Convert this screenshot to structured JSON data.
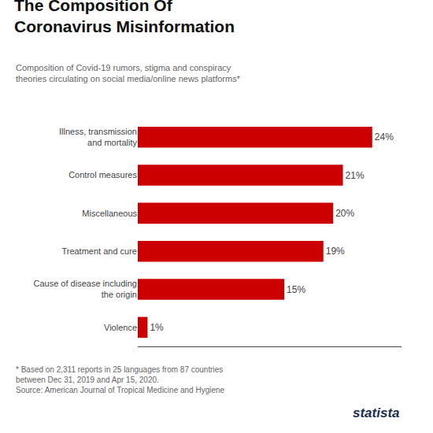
{
  "chart_data": {
    "type": "bar",
    "orientation": "horizontal",
    "title": "The Composition Of\nCoronavirus Misinformation",
    "subtitle": "Composition of Covid-19 rumors, stigma and conspiracy\ntheories circulating on social media/online news platforms*",
    "categories": [
      "Illness, transmission\nand mortality",
      "Control measures",
      "Miscellaneous",
      "Treatment and cure",
      "Cause of disease including\nthe origin",
      "Violence"
    ],
    "values": [
      24,
      21,
      20,
      19,
      15,
      1
    ],
    "value_labels": [
      "24%",
      "21%",
      "20%",
      "19%",
      "15%",
      "1%"
    ],
    "data_labels": true,
    "color": "#cc0000",
    "xlim": [
      0,
      27
    ],
    "grid": false,
    "tick_labels": "y",
    "annotations": [
      "* Based on 2,311 reports in 25 languages from 87 countries\nbetween Dec 31, 2019 and Apr 15, 2020.\nSource: American Journal of Tropical Medicine and Hygiene",
      "statista"
    ]
  }
}
